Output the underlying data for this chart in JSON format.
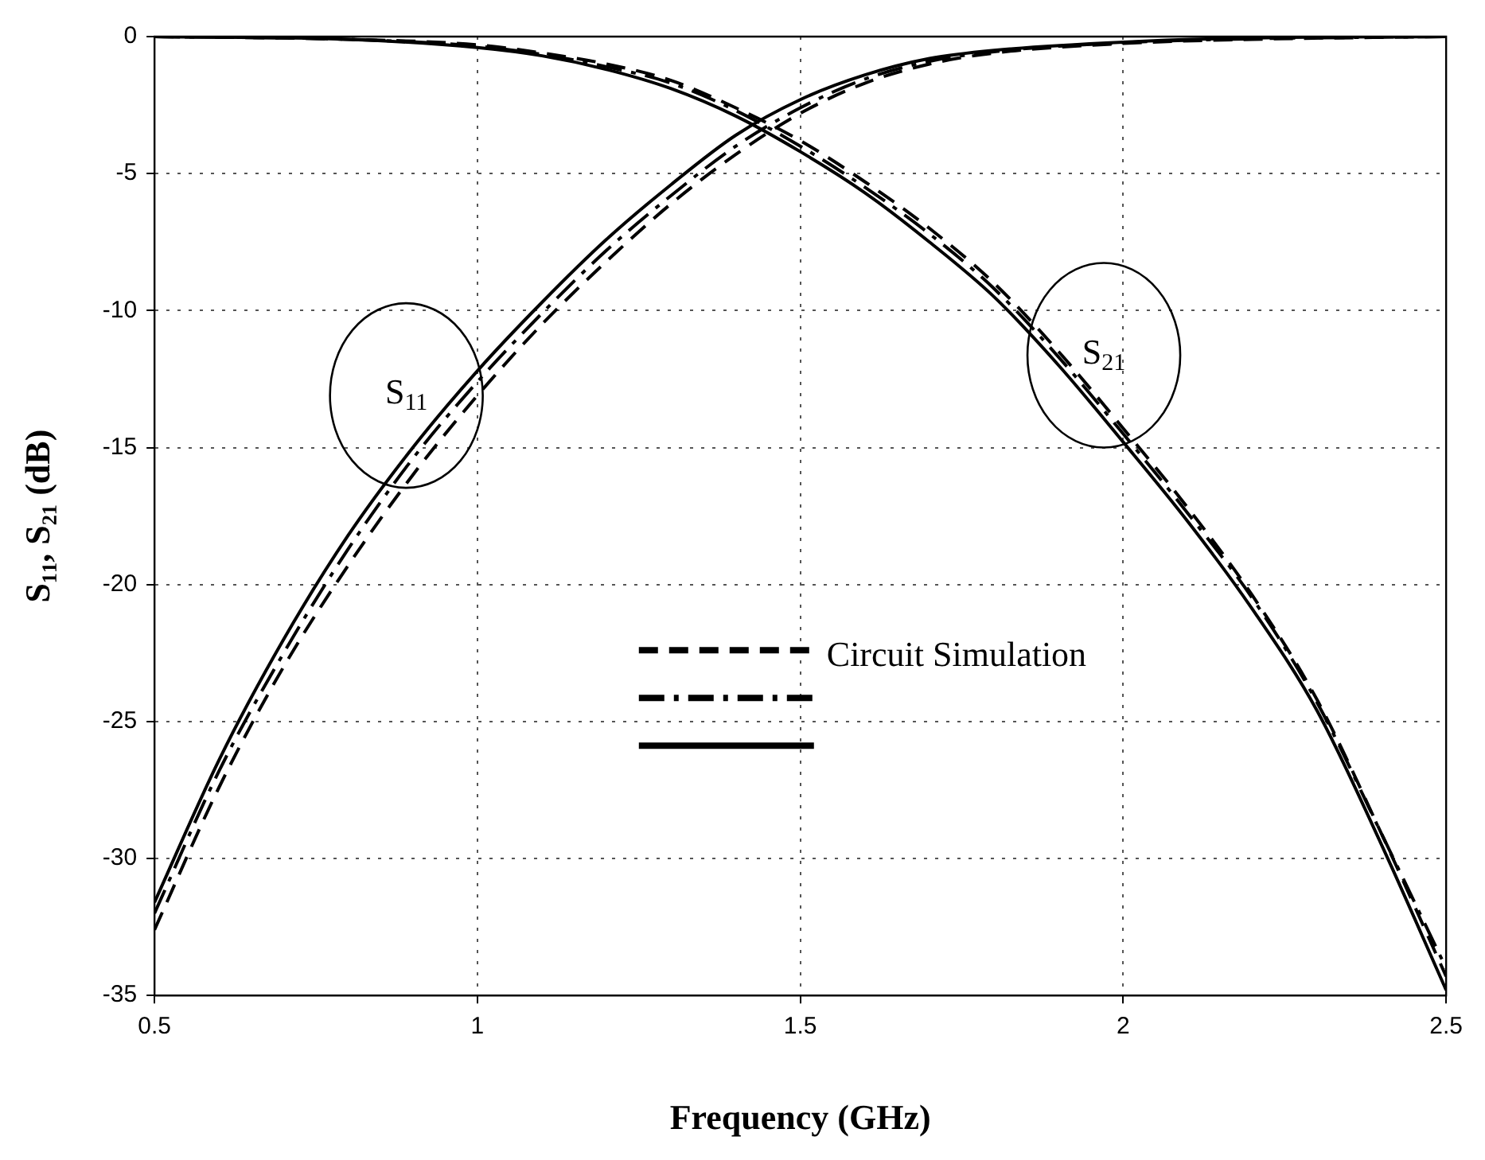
{
  "chart_data": {
    "type": "line",
    "xlabel": "Frequency (GHz)",
    "ylabel": "S₁₁, S₂₁ (dB)",
    "xlim": [
      0.5,
      2.5
    ],
    "xticks": [
      0.5,
      1,
      1.5,
      2,
      2.5
    ],
    "ylim": [
      -35,
      0
    ],
    "yticks": [
      -35,
      -30,
      -25,
      -20,
      -15,
      -10,
      -5,
      0
    ],
    "grid": true,
    "legend": "bottom right",
    "marker": "none",
    "annotations": [
      "S$_{11}$",
      "S$_{21}$"
    ],
    "series": [
      {
        "name": "Circuit Simulation",
        "color": "#000000",
        "line_style": "dashed",
        "x": [
          0.5,
          0.6,
          0.7,
          0.8,
          0.9,
          1.0,
          1.1,
          1.2,
          1.3,
          1.4,
          1.5,
          1.6,
          1.7,
          1.8,
          2.0,
          2.2,
          2.5
        ],
        "values": [
          -32.6,
          -27.4,
          -23,
          -19.3,
          -16,
          -13.1,
          -10.5,
          -8.2,
          -6.1,
          -4.3,
          -2.8,
          -1.7,
          -1,
          -0.6,
          -0.25,
          -0.1,
          0
        ]
      },
      {
        "color": "#000000",
        "line_style": "dashdot",
        "x": [
          0.5,
          0.6,
          0.7,
          0.8,
          0.9,
          1.0,
          1.1,
          1.2,
          1.3,
          1.4,
          1.5,
          1.6,
          1.7,
          1.8,
          2.0,
          2.2,
          2.5
        ],
        "values": [
          -32,
          -26.8,
          -22.5,
          -18.7,
          -15.4,
          -12.6,
          -10.1,
          -7.8,
          -5.8,
          -4,
          -2.6,
          -1.55,
          -0.9,
          -0.55,
          -0.22,
          -0.08,
          0
        ]
      },
      {
        "color": "#000000",
        "line_style": "solid",
        "x": [
          0.5,
          0.6,
          0.7,
          0.8,
          0.9,
          1.0,
          1.1,
          1.2,
          1.3,
          1.4,
          1.5,
          1.6,
          1.7,
          1.8,
          2.0,
          2.2,
          2.5
        ],
        "values": [
          -31.6,
          -26.4,
          -22,
          -18.2,
          -15,
          -12.2,
          -9.7,
          -7.4,
          -5.4,
          -3.6,
          -2.3,
          -1.4,
          -0.8,
          -0.5,
          -0.2,
          -0.05,
          0
        ]
      },
      {
        "color": "#000000",
        "line_style": "dashed",
        "x": [
          0.5,
          0.8,
          1.0,
          1.1,
          1.2,
          1.3,
          1.4,
          1.5,
          1.6,
          1.7,
          1.8,
          1.9,
          2.0,
          2.1,
          2.2,
          2.3,
          2.4,
          2.5
        ],
        "values": [
          0,
          -0.1,
          -0.3,
          -0.6,
          -1.0,
          -1.6,
          -2.6,
          -3.8,
          -5.3,
          -7,
          -9,
          -11.5,
          -14.3,
          -17.2,
          -20.4,
          -24.2,
          -29.1,
          -34.3
        ]
      },
      {
        "color": "#000000",
        "line_style": "dashdot",
        "x": [
          0.5,
          0.8,
          1.0,
          1.1,
          1.2,
          1.3,
          1.4,
          1.5,
          1.6,
          1.7,
          1.8,
          1.9,
          2.0,
          2.1,
          2.2,
          2.3,
          2.4,
          2.5
        ],
        "values": [
          0,
          -0.1,
          -0.35,
          -0.65,
          -1.1,
          -1.7,
          -2.7,
          -4.0,
          -5.5,
          -7.2,
          -9.2,
          -11.7,
          -14.5,
          -17.4,
          -20.5,
          -24.3,
          -29.1,
          -34
        ]
      },
      {
        "color": "#000000",
        "line_style": "solid",
        "x": [
          0.5,
          0.8,
          1.0,
          1.1,
          1.2,
          1.3,
          1.4,
          1.5,
          1.6,
          1.7,
          1.8,
          1.9,
          2.0,
          2.1,
          2.2,
          2.3,
          2.4,
          2.5
        ],
        "values": [
          0,
          -0.1,
          -0.4,
          -0.7,
          -1.2,
          -1.9,
          -2.9,
          -4.2,
          -5.7,
          -7.5,
          -9.5,
          -12,
          -14.8,
          -17.7,
          -20.9,
          -24.6,
          -29.5,
          -34.8
        ]
      }
    ]
  }
}
